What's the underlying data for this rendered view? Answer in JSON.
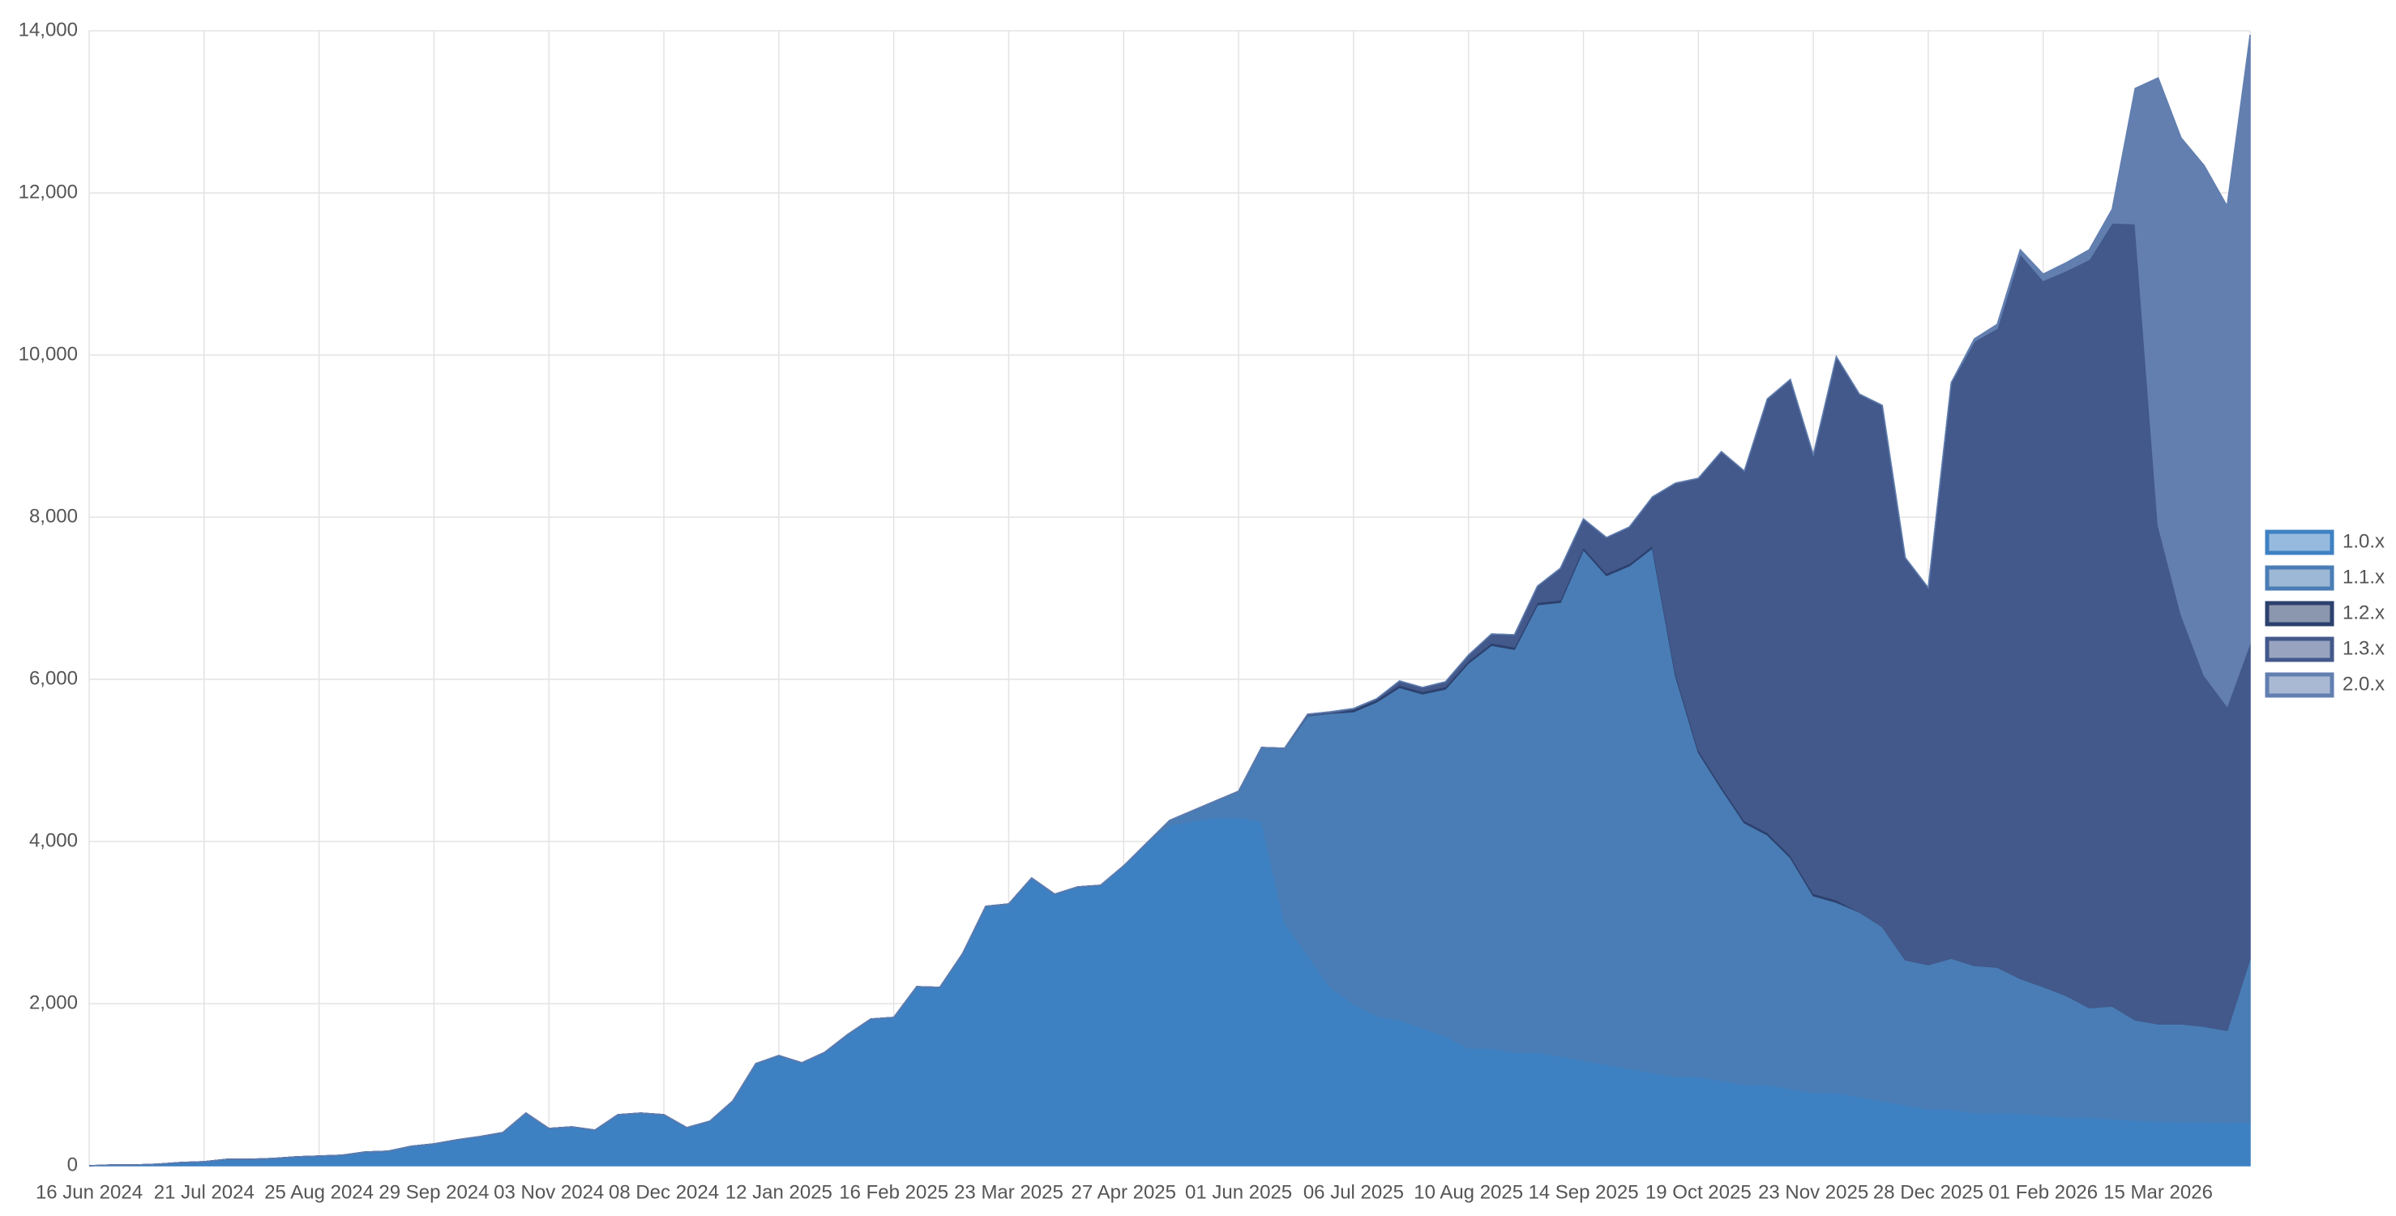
{
  "chart_data": {
    "type": "stacked_area",
    "categories": [
      "16 Jun 2024",
      null,
      null,
      null,
      null,
      "21 Jul 2024",
      null,
      null,
      null,
      null,
      "25 Aug 2024",
      null,
      null,
      null,
      null,
      "29 Sep 2024",
      null,
      null,
      null,
      null,
      "03 Nov 2024",
      null,
      null,
      null,
      null,
      "08 Dec 2024",
      null,
      null,
      null,
      null,
      "12 Jan 2025",
      null,
      null,
      null,
      null,
      "16 Feb 2025",
      null,
      null,
      null,
      null,
      "23 Mar 2025",
      null,
      null,
      null,
      null,
      "27 Apr 2025",
      null,
      null,
      null,
      null,
      "01 Jun 2025",
      null,
      null,
      null,
      null,
      "06 Jul 2025",
      null,
      null,
      null,
      null,
      "10 Aug 2025",
      null,
      null,
      null,
      null,
      "14 Sep 2025",
      null,
      null,
      null,
      null,
      "19 Oct 2025",
      null,
      null,
      null,
      null,
      "23 Nov 2025",
      null,
      null,
      null,
      null,
      "28 Dec 2025",
      null,
      null,
      null,
      null,
      "01 Feb 2026",
      null,
      null,
      null,
      null,
      "15 Mar 2026",
      null,
      null,
      null,
      null
    ],
    "series": [
      {
        "name": "1.0.x",
        "color": "#3e81c3",
        "values": [
          0,
          10,
          10,
          20,
          40,
          50,
          80,
          80,
          90,
          110,
          120,
          130,
          170,
          180,
          240,
          270,
          320,
          360,
          410,
          650,
          460,
          480,
          440,
          630,
          650,
          630,
          470,
          550,
          800,
          1260,
          1360,
          1270,
          1400,
          1620,
          1810,
          1830,
          2210,
          2200,
          2620,
          3200,
          3230,
          3550,
          3350,
          3440,
          3460,
          3700,
          3980,
          4200,
          4250,
          4300,
          4300,
          4250,
          3000,
          2600,
          2200,
          2000,
          1850,
          1800,
          1700,
          1600,
          1450,
          1450,
          1400,
          1400,
          1350,
          1300,
          1250,
          1200,
          1150,
          1100,
          1100,
          1050,
          1000,
          1000,
          950,
          900,
          900,
          850,
          800,
          750,
          700,
          700,
          650,
          650,
          650,
          620,
          600,
          600,
          580,
          560,
          550,
          540,
          540,
          530,
          540
        ]
      },
      {
        "name": "1.1.x",
        "color": "#4a7db5",
        "values": [
          0,
          0,
          0,
          0,
          0,
          0,
          0,
          0,
          0,
          0,
          0,
          0,
          0,
          0,
          0,
          0,
          0,
          0,
          0,
          0,
          0,
          0,
          0,
          0,
          0,
          0,
          0,
          0,
          0,
          0,
          0,
          0,
          0,
          0,
          0,
          0,
          0,
          0,
          0,
          0,
          0,
          0,
          0,
          0,
          0,
          0,
          0,
          60,
          130,
          200,
          320,
          910,
          2150,
          2950,
          3380,
          3600,
          3870,
          4100,
          4120,
          4280,
          4750,
          4970,
          4970,
          5520,
          5600,
          6300,
          6030,
          6200,
          6470,
          4950,
          4000,
          3600,
          3230,
          3080,
          2850,
          2430,
          2350,
          2280,
          2150,
          1790,
          1780,
          1860,
          1820,
          1800,
          1660,
          1590,
          1500,
          1350,
          1390,
          1240,
          1200,
          1210,
          1180,
          1140,
          2020
        ]
      },
      {
        "name": "1.2.x",
        "color": "#2c416e",
        "values": [
          0,
          0,
          0,
          0,
          0,
          0,
          0,
          0,
          0,
          0,
          0,
          0,
          0,
          0,
          0,
          0,
          0,
          0,
          0,
          0,
          0,
          0,
          0,
          0,
          0,
          0,
          0,
          0,
          0,
          0,
          0,
          0,
          0,
          0,
          0,
          0,
          0,
          0,
          0,
          0,
          0,
          0,
          0,
          0,
          0,
          0,
          0,
          0,
          0,
          0,
          0,
          0,
          0,
          0,
          0,
          30,
          30,
          30,
          30,
          30,
          30,
          30,
          30,
          30,
          30,
          30,
          30,
          30,
          30,
          30,
          30,
          30,
          30,
          30,
          30,
          30,
          30,
          0,
          0,
          0,
          0,
          0,
          0,
          0,
          0,
          0,
          0,
          0,
          0,
          0,
          0,
          0,
          0,
          0,
          0
        ]
      },
      {
        "name": "1.3.x",
        "color": "#43598b",
        "values": [
          0,
          0,
          0,
          0,
          0,
          0,
          0,
          0,
          0,
          0,
          0,
          0,
          0,
          0,
          0,
          0,
          0,
          0,
          0,
          0,
          0,
          0,
          0,
          0,
          0,
          0,
          0,
          0,
          0,
          0,
          0,
          0,
          0,
          0,
          0,
          0,
          0,
          0,
          0,
          0,
          0,
          0,
          0,
          0,
          0,
          0,
          0,
          0,
          0,
          0,
          0,
          0,
          0,
          20,
          20,
          10,
          10,
          50,
          50,
          60,
          70,
          110,
          150,
          200,
          390,
          350,
          440,
          450,
          600,
          2340,
          3350,
          4130,
          4310,
          5350,
          5870,
          5410,
          6700,
          6390,
          6430,
          4960,
          4650,
          7100,
          7700,
          7880,
          8940,
          8710,
          8940,
          9230,
          9660,
          9820,
          6150,
          5050,
          4330,
          4000,
          3890
        ]
      },
      {
        "name": "2.0.x",
        "color": "#627fb0",
        "values": [
          0,
          0,
          0,
          0,
          0,
          0,
          0,
          0,
          0,
          0,
          0,
          0,
          0,
          0,
          0,
          0,
          0,
          0,
          0,
          0,
          0,
          0,
          0,
          0,
          0,
          0,
          0,
          0,
          0,
          0,
          0,
          0,
          0,
          0,
          0,
          0,
          0,
          0,
          0,
          0,
          0,
          0,
          0,
          0,
          0,
          0,
          0,
          0,
          0,
          0,
          0,
          0,
          0,
          0,
          0,
          0,
          0,
          0,
          0,
          0,
          0,
          0,
          0,
          0,
          0,
          0,
          0,
          0,
          0,
          0,
          0,
          0,
          0,
          0,
          0,
          0,
          0,
          0,
          0,
          0,
          0,
          0,
          30,
          50,
          50,
          80,
          100,
          120,
          170,
          1670,
          5520,
          5880,
          6290,
          6170,
          7500
        ]
      }
    ],
    "ylim": [
      0,
      14000
    ],
    "yticks": [
      0,
      {
        "value": 2000,
        "label": "2,000"
      },
      {
        "value": 4000,
        "label": "4,000"
      },
      {
        "value": 6000,
        "label": "6,000"
      },
      {
        "value": 8000,
        "label": "8,000"
      },
      {
        "value": 10000,
        "label": "10,000"
      },
      {
        "value": 12000,
        "label": "12,000"
      },
      {
        "value": 14000,
        "label": "14,000"
      }
    ],
    "grid": true,
    "legend": "right"
  }
}
